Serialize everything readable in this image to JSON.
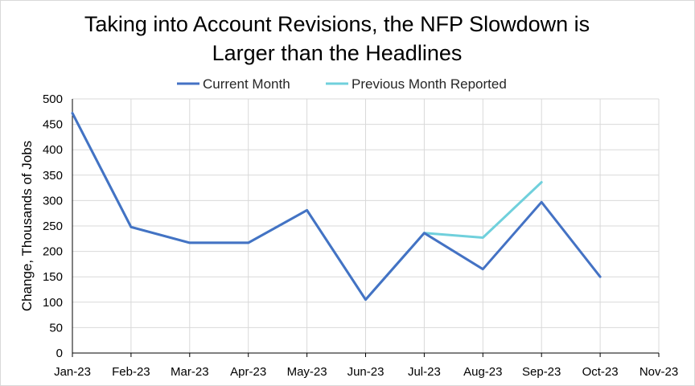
{
  "chart_data": {
    "type": "line",
    "title_lines": [
      "Taking into Account Revisions, the NFP Slowdown is",
      "Larger than the Headlines"
    ],
    "xlabel": "",
    "ylabel": "Change, Thousands of Jobs",
    "categories": [
      "Jan-23",
      "Feb-23",
      "Mar-23",
      "Apr-23",
      "May-23",
      "Jun-23",
      "Jul-23",
      "Aug-23",
      "Sep-23",
      "Oct-23",
      "Nov-23"
    ],
    "y_ticks": [
      0,
      50,
      100,
      150,
      200,
      250,
      300,
      350,
      400,
      450,
      500
    ],
    "ylim": [
      0,
      500
    ],
    "grid": true,
    "legend_position": "top",
    "series": [
      {
        "name": "Current Month",
        "color": "#4472c4",
        "values": [
          472,
          248,
          217,
          217,
          281,
          105,
          236,
          165,
          297,
          150,
          null
        ]
      },
      {
        "name": "Previous Month Reported",
        "color": "#70d0dc",
        "values": [
          472,
          248,
          217,
          217,
          281,
          105,
          236,
          227,
          336,
          null,
          null
        ]
      }
    ]
  }
}
